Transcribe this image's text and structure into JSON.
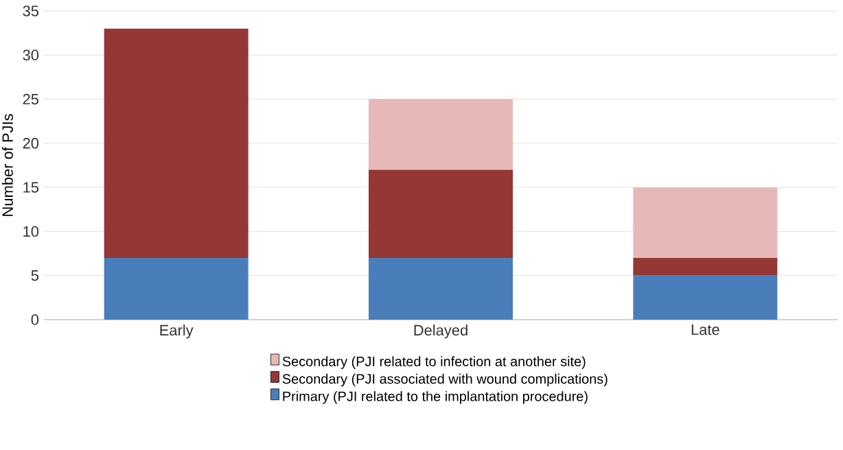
{
  "chart_data": {
    "type": "bar",
    "stacked": true,
    "ylabel": "Number of PJIs",
    "categories": [
      "Early",
      "Delayed",
      "Late"
    ],
    "series": [
      {
        "name": "Primary (PJI related to the implantation procedure)",
        "color": "#4a7ebb",
        "values": [
          7,
          7,
          5
        ]
      },
      {
        "name": "Secondary (PJI associated with wound complications)",
        "color": "#953735",
        "values": [
          26,
          10,
          2
        ]
      },
      {
        "name": "Secondary (PJI related to infection at another site)",
        "color": "#e6b9b8",
        "values": [
          0,
          8,
          8
        ]
      }
    ],
    "ylim": [
      0,
      35
    ],
    "yticks": [
      0,
      5,
      10,
      15,
      20,
      25,
      30,
      35
    ],
    "grid": "y",
    "legend": "bottom"
  }
}
